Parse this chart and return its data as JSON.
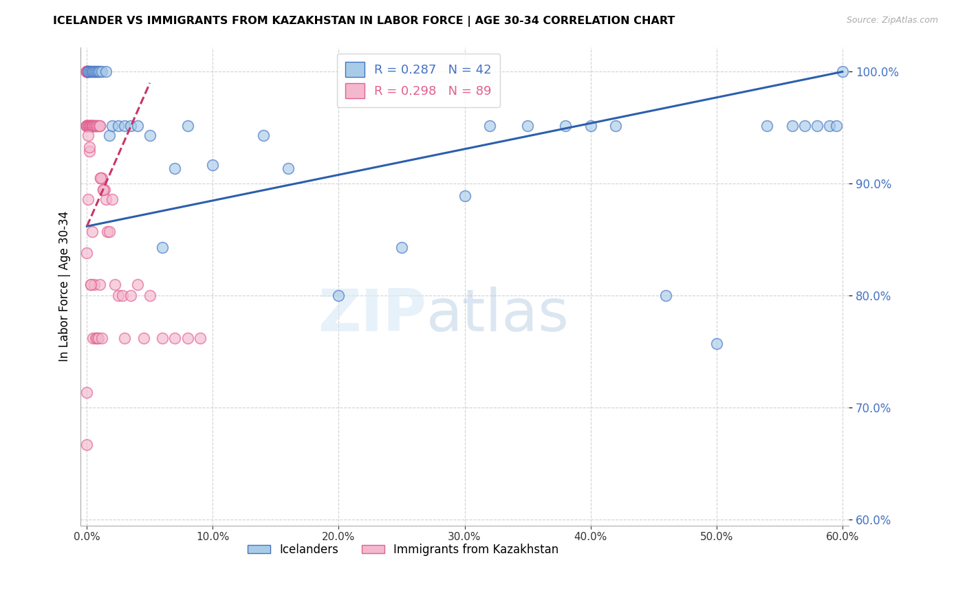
{
  "title": "ICELANDER VS IMMIGRANTS FROM KAZAKHSTAN IN LABOR FORCE | AGE 30-34 CORRELATION CHART",
  "source": "Source: ZipAtlas.com",
  "ylabel": "In Labor Force | Age 30-34",
  "xlim": [
    -0.005,
    0.605
  ],
  "ylim": [
    0.595,
    1.022
  ],
  "yticks": [
    1.0,
    0.9,
    0.8,
    0.7,
    0.6
  ],
  "xticks": [
    0.0,
    0.1,
    0.2,
    0.3,
    0.4,
    0.5,
    0.6
  ],
  "blue_fill": "#a8cce8",
  "blue_edge": "#4472c4",
  "pink_fill": "#f4b8ce",
  "pink_edge": "#e06090",
  "blue_trend_color": "#2b5fac",
  "pink_trend_color": "#cc3366",
  "right_axis_color": "#4472c4",
  "grid_color": "#cccccc",
  "legend_blue_r": "R = 0.287",
  "legend_blue_n": "N = 42",
  "legend_pink_r": "R = 0.298",
  "legend_pink_n": "N = 89",
  "watermark_zip": "ZIP",
  "watermark_atlas": "atlas",
  "blue_x": [
    0.001,
    0.002,
    0.003,
    0.004,
    0.005,
    0.006,
    0.007,
    0.008,
    0.009,
    0.01,
    0.012,
    0.015,
    0.018,
    0.02,
    0.025,
    0.03,
    0.035,
    0.04,
    0.05,
    0.06,
    0.07,
    0.08,
    0.1,
    0.14,
    0.16,
    0.2,
    0.25,
    0.3,
    0.32,
    0.35,
    0.38,
    0.4,
    0.42,
    0.46,
    0.5,
    0.54,
    0.56,
    0.57,
    0.58,
    0.59,
    0.595,
    0.6
  ],
  "blue_y": [
    1.0,
    1.0,
    1.0,
    1.0,
    1.0,
    1.0,
    1.0,
    1.0,
    1.0,
    1.0,
    1.0,
    1.0,
    0.943,
    0.952,
    0.952,
    0.952,
    0.952,
    0.952,
    0.943,
    0.843,
    0.914,
    0.952,
    0.917,
    0.943,
    0.914,
    0.8,
    0.843,
    0.889,
    0.952,
    0.952,
    0.952,
    0.952,
    0.952,
    0.8,
    0.757,
    0.952,
    0.952,
    0.952,
    0.952,
    0.952,
    0.952,
    1.0
  ],
  "pink_x": [
    0.0,
    0.0,
    0.0,
    0.0,
    0.0,
    0.0,
    0.0,
    0.0,
    0.0,
    0.0,
    0.0,
    0.0,
    0.0,
    0.0,
    0.0,
    0.0,
    0.0,
    0.0,
    0.001,
    0.001,
    0.001,
    0.001,
    0.001,
    0.001,
    0.002,
    0.002,
    0.002,
    0.002,
    0.002,
    0.003,
    0.003,
    0.003,
    0.003,
    0.004,
    0.004,
    0.004,
    0.005,
    0.005,
    0.005,
    0.006,
    0.006,
    0.007,
    0.007,
    0.008,
    0.008,
    0.009,
    0.01,
    0.01,
    0.011,
    0.012,
    0.013,
    0.014,
    0.015,
    0.016,
    0.018,
    0.02,
    0.022,
    0.025,
    0.028,
    0.03,
    0.035,
    0.04,
    0.045,
    0.05,
    0.06,
    0.07,
    0.08,
    0.09,
    0.0,
    0.001,
    0.002,
    0.003,
    0.004,
    0.005,
    0.006,
    0.007,
    0.008,
    0.009,
    0.01,
    0.011,
    0.012,
    0.013,
    0.001,
    0.002,
    0.003,
    0.0,
    0.0
  ],
  "pink_y": [
    1.0,
    1.0,
    1.0,
    1.0,
    1.0,
    1.0,
    1.0,
    1.0,
    1.0,
    1.0,
    1.0,
    0.952,
    0.952,
    0.952,
    0.952,
    0.952,
    0.952,
    0.952,
    1.0,
    1.0,
    1.0,
    1.0,
    0.952,
    0.952,
    0.952,
    0.952,
    0.952,
    0.952,
    0.952,
    0.952,
    0.952,
    0.952,
    0.952,
    0.952,
    0.952,
    0.952,
    0.952,
    0.952,
    0.952,
    0.952,
    0.952,
    0.952,
    0.952,
    0.952,
    0.952,
    0.952,
    0.952,
    0.952,
    0.905,
    0.905,
    0.895,
    0.895,
    0.886,
    0.857,
    0.857,
    0.886,
    0.81,
    0.8,
    0.8,
    0.762,
    0.8,
    0.81,
    0.762,
    0.8,
    0.762,
    0.762,
    0.762,
    0.762,
    0.838,
    0.886,
    0.929,
    0.81,
    0.857,
    0.762,
    0.81,
    0.762,
    0.762,
    0.762,
    0.81,
    0.905,
    0.762,
    0.895,
    0.943,
    0.933,
    0.81,
    0.714,
    0.667
  ],
  "blue_trend_x0": 0.0,
  "blue_trend_y0": 0.862,
  "blue_trend_x1": 0.6,
  "blue_trend_y1": 1.0,
  "pink_trend_x0": 0.0,
  "pink_trend_y0": 0.862,
  "pink_trend_x1": 0.05,
  "pink_trend_y1": 0.99
}
